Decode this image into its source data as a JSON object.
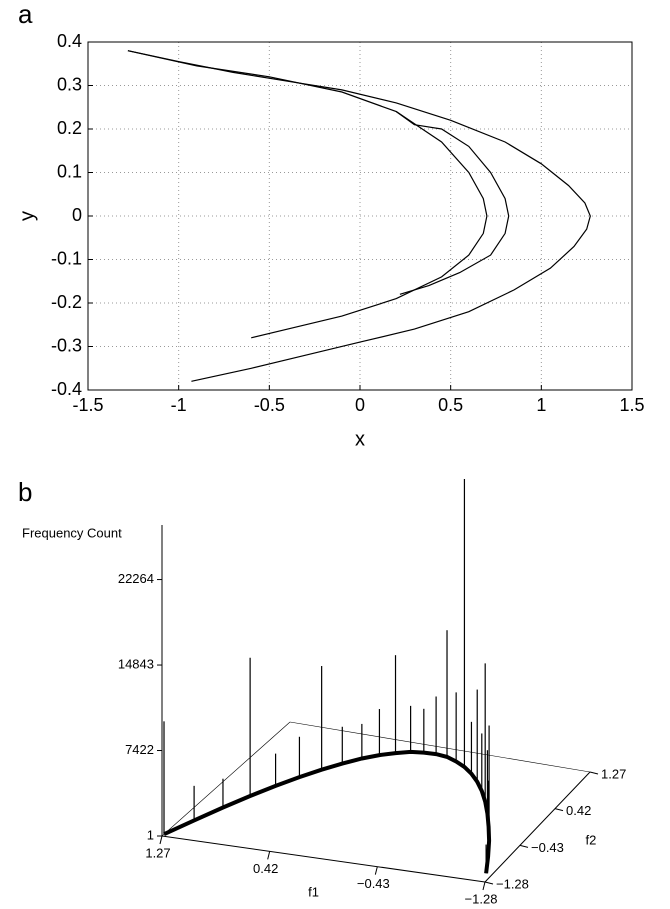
{
  "chart_data": [
    {
      "type": "line",
      "panel_label": "a",
      "xlabel": "x",
      "ylabel": "y",
      "xlim": [
        -1.5,
        1.5
      ],
      "xticks": [
        -1.5,
        -1,
        -0.5,
        0,
        0.5,
        1,
        1.5
      ],
      "ylim": [
        -0.4,
        0.4
      ],
      "yticks": [
        -0.4,
        -0.3,
        -0.2,
        -0.1,
        0,
        0.1,
        0.2,
        0.3,
        0.4
      ],
      "grid": true,
      "series": [
        {
          "color": "#000000",
          "x": [
            -1.28,
            -1.0,
            -0.7,
            -0.4,
            -0.1,
            0.2,
            0.5,
            0.8,
            1.0,
            1.15,
            1.24,
            1.27,
            1.25,
            1.18,
            1.05,
            0.85,
            0.6,
            0.3,
            0.0,
            -0.3,
            -0.6,
            -0.93
          ],
          "values": [
            0.38,
            0.355,
            0.33,
            0.31,
            0.29,
            0.26,
            0.22,
            0.17,
            0.12,
            0.07,
            0.03,
            0,
            -0.03,
            -0.07,
            -0.12,
            -0.17,
            -0.22,
            -0.26,
            -0.29,
            -0.32,
            -0.35,
            -0.38
          ]
        },
        {
          "color": "#000000",
          "x": [
            -1.28,
            -0.9,
            -0.5,
            -0.1,
            0.2,
            0.45,
            0.6,
            0.68,
            0.7,
            0.68,
            0.6,
            0.45,
            0.2,
            -0.1,
            -0.35,
            -0.6
          ],
          "values": [
            0.38,
            0.345,
            0.32,
            0.285,
            0.24,
            0.17,
            0.1,
            0.04,
            0,
            -0.04,
            -0.09,
            -0.14,
            -0.19,
            -0.23,
            -0.255,
            -0.28
          ]
        },
        {
          "color": "#000000",
          "x": [
            0.2,
            0.3,
            0.45,
            0.6,
            0.72,
            0.8,
            0.82,
            0.8,
            0.72,
            0.55,
            0.38,
            0.22
          ],
          "values": [
            0.24,
            0.21,
            0.2,
            0.16,
            0.1,
            0.04,
            0,
            -0.04,
            -0.09,
            -0.13,
            -0.16,
            -0.18
          ]
        }
      ]
    },
    {
      "type": "spike3d",
      "panel_label": "b",
      "zlabel": "Frequency Count",
      "xlabel": "f1",
      "ylabel": "f2",
      "xlim": [
        1.27,
        -1.28
      ],
      "xticks": [
        1.27,
        0.42,
        {
          "value": -0.43,
          "label": "−0.43"
        },
        {
          "value": -1.28,
          "label": "−1.28"
        }
      ],
      "ylim": [
        -1.28,
        1.27
      ],
      "yticks": [
        1.27,
        0.42,
        {
          "value": -0.43,
          "label": "−0.43"
        },
        {
          "value": -1.28,
          "label": "−1.28"
        }
      ],
      "zlim": [
        1,
        27000
      ],
      "zticks": [
        1,
        7422,
        14843,
        22264
      ],
      "color": "#000000",
      "x": [
        1.27,
        1.17,
        1.07,
        0.97,
        0.87,
        0.77,
        0.67,
        0.57,
        0.47,
        0.37,
        0.27,
        0.17,
        0.07,
        -0.03,
        -0.13,
        -0.23,
        -0.33,
        -0.43,
        -0.53,
        -0.63,
        -0.73,
        -0.83,
        -0.93,
        -1.03,
        -1.13,
        -1.23
      ],
      "y": [
        -1.24,
        -0.89,
        -0.56,
        -0.26,
        0.01,
        0.25,
        0.46,
        0.64,
        0.8,
        0.92,
        1.01,
        1.08,
        1.11,
        1.12,
        1.1,
        1.04,
        0.96,
        0.85,
        0.71,
        0.54,
        0.34,
        0.11,
        -0.15,
        -0.43,
        -0.75,
        -1.1
      ],
      "values": [
        9800,
        3000,
        2500,
        12000,
        2800,
        3500,
        9000,
        3200,
        3000,
        4000,
        8500,
        4000,
        3800,
        5000,
        11000,
        6000,
        25000,
        4500,
        8000,
        5000,
        12000,
        5500,
        4000,
        10000,
        3500,
        2500
      ]
    }
  ]
}
